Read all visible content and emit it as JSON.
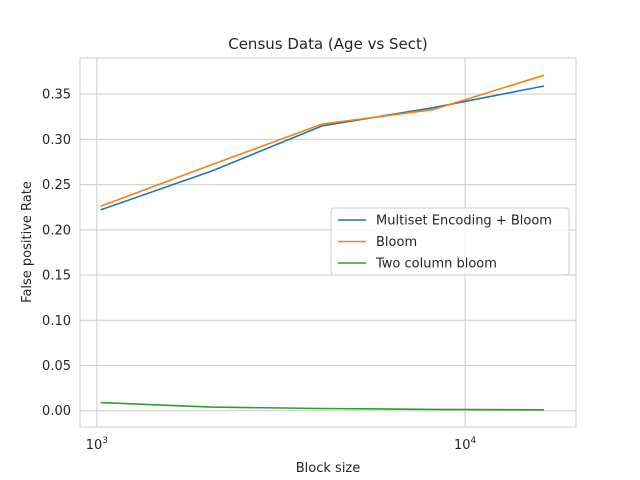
{
  "chart_data": {
    "type": "line",
    "title": "Census Data (Age vs Sect)",
    "xlabel": "Block size",
    "ylabel": "False positive Rate",
    "xscale": "log",
    "xlim": [
      900,
      20000
    ],
    "ylim": [
      -0.018,
      0.39
    ],
    "xticks": [
      {
        "value": 1000,
        "base": "10",
        "exp": "3"
      },
      {
        "value": 10000,
        "base": "10",
        "exp": "4"
      }
    ],
    "yticks": [
      {
        "value": 0.0,
        "label": "0.00"
      },
      {
        "value": 0.05,
        "label": "0.05"
      },
      {
        "value": 0.1,
        "label": "0.10"
      },
      {
        "value": 0.15,
        "label": "0.15"
      },
      {
        "value": 0.2,
        "label": "0.20"
      },
      {
        "value": 0.25,
        "label": "0.25"
      },
      {
        "value": 0.3,
        "label": "0.30"
      },
      {
        "value": 0.35,
        "label": "0.35"
      }
    ],
    "grid": true,
    "legend_position": "center-right",
    "x": [
      1024,
      2048,
      4096,
      8192,
      16384
    ],
    "series": [
      {
        "name": "Multiset Encoding + Bloom",
        "color": "#1f77b4",
        "values": [
          0.222,
          0.265,
          0.315,
          0.335,
          0.359
        ]
      },
      {
        "name": "Bloom",
        "color": "#ff7f0e",
        "values": [
          0.226,
          0.272,
          0.317,
          0.333,
          0.371
        ]
      },
      {
        "name": "Two column bloom",
        "color": "#2ca02c",
        "values": [
          0.009,
          0.004,
          0.0025,
          0.0015,
          0.001
        ]
      }
    ]
  }
}
